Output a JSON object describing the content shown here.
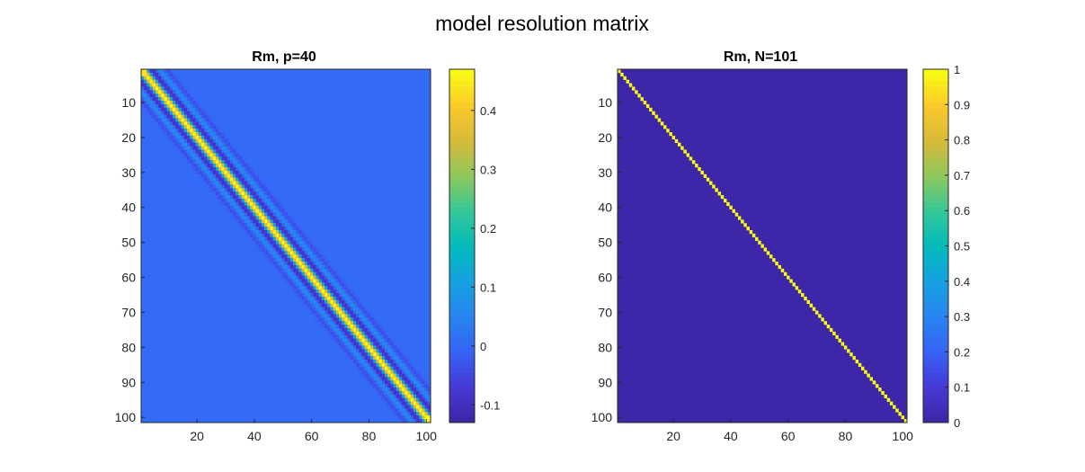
{
  "figure": {
    "title": "model resolution matrix"
  },
  "chart_data": [
    {
      "type": "heatmap",
      "title": "Rm, p=40",
      "matrix_size": 101,
      "description_values": {
        "diagonal_value": 0.47,
        "first_sidelobe_value": -0.13,
        "background_value": 0.0,
        "bandwidth": 40
      },
      "xlim": [
        1,
        101
      ],
      "ylim": [
        1,
        101
      ],
      "y_reversed": true,
      "xticks": [
        20,
        40,
        60,
        80,
        100
      ],
      "yticks": [
        10,
        20,
        30,
        40,
        50,
        60,
        70,
        80,
        90,
        100
      ],
      "colorbar": {
        "limits": [
          -0.13,
          0.47
        ],
        "ticks": [
          -0.1,
          0,
          0.1,
          0.2,
          0.3,
          0.4
        ],
        "tick_labels": [
          "-0.1",
          "0",
          "0.1",
          "0.2",
          "0.3",
          "0.4"
        ]
      },
      "colormap": "parula"
    },
    {
      "type": "heatmap",
      "title": "Rm, N=101",
      "matrix_size": 101,
      "description_values": {
        "diagonal_value": 1,
        "background_value": 0
      },
      "xlim": [
        1,
        101
      ],
      "ylim": [
        1,
        101
      ],
      "y_reversed": true,
      "xticks": [
        20,
        40,
        60,
        80,
        100
      ],
      "yticks": [
        10,
        20,
        30,
        40,
        50,
        60,
        70,
        80,
        90,
        100
      ],
      "colorbar": {
        "limits": [
          0,
          1
        ],
        "ticks": [
          0,
          0.1,
          0.2,
          0.3,
          0.4,
          0.5,
          0.6,
          0.7,
          0.8,
          0.9,
          1
        ],
        "tick_labels": [
          "0",
          "0.1",
          "0.2",
          "0.3",
          "0.4",
          "0.5",
          "0.6",
          "0.7",
          "0.8",
          "0.9",
          "1"
        ]
      },
      "colormap": "parula"
    }
  ]
}
